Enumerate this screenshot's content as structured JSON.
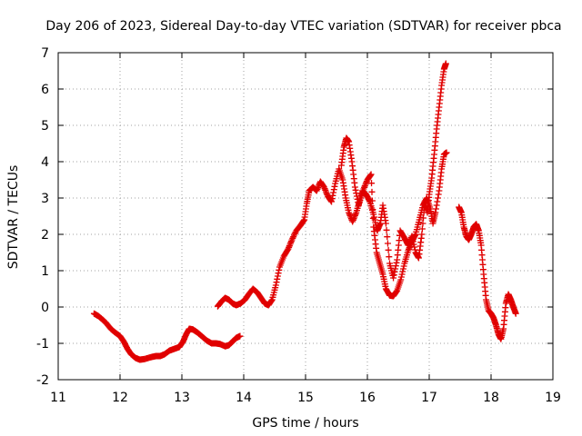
{
  "chart_data": {
    "type": "scatter",
    "title": "Day 206 of 2023, Sidereal Day-to-day VTEC variation (SDTVAR) for receiver pbca",
    "xlabel": "GPS time / hours",
    "ylabel": "SDTVAR / TECUs",
    "xlim": [
      11,
      19
    ],
    "ylim": [
      -2,
      7
    ],
    "xticks": [
      "11",
      "12",
      "13",
      "14",
      "15",
      "16",
      "17",
      "18",
      "19"
    ],
    "yticks": [
      "-2",
      "-1",
      "0",
      "1",
      "2",
      "3",
      "4",
      "5",
      "6",
      "7"
    ],
    "grid": true,
    "marker": "plus",
    "color": "#e00000",
    "series": [
      {
        "name": "segment-1",
        "points": [
          [
            11.58,
            -0.18
          ],
          [
            11.65,
            -0.25
          ],
          [
            11.72,
            -0.35
          ],
          [
            11.78,
            -0.45
          ],
          [
            11.85,
            -0.6
          ],
          [
            11.92,
            -0.7
          ],
          [
            12.0,
            -0.8
          ],
          [
            12.06,
            -0.95
          ],
          [
            12.12,
            -1.15
          ],
          [
            12.18,
            -1.3
          ],
          [
            12.25,
            -1.4
          ],
          [
            12.32,
            -1.45
          ],
          [
            12.4,
            -1.43
          ],
          [
            12.5,
            -1.38
          ],
          [
            12.58,
            -1.35
          ],
          [
            12.65,
            -1.35
          ],
          [
            12.72,
            -1.3
          ],
          [
            12.8,
            -1.2
          ],
          [
            12.88,
            -1.15
          ],
          [
            12.96,
            -1.1
          ],
          [
            13.02,
            -0.95
          ],
          [
            13.07,
            -0.75
          ],
          [
            13.12,
            -0.6
          ],
          [
            13.18,
            -0.62
          ],
          [
            13.25,
            -0.7
          ],
          [
            13.32,
            -0.8
          ],
          [
            13.4,
            -0.92
          ],
          [
            13.48,
            -1.0
          ],
          [
            13.55,
            -1.0
          ],
          [
            13.62,
            -1.02
          ],
          [
            13.7,
            -1.08
          ],
          [
            13.76,
            -1.05
          ],
          [
            13.82,
            -0.95
          ],
          [
            13.88,
            -0.85
          ],
          [
            13.94,
            -0.8
          ]
        ]
      },
      {
        "name": "segment-2",
        "points": [
          [
            13.58,
            0.02
          ],
          [
            13.64,
            0.15
          ],
          [
            13.7,
            0.25
          ],
          [
            13.76,
            0.2
          ],
          [
            13.82,
            0.1
          ],
          [
            13.88,
            0.05
          ],
          [
            13.95,
            0.1
          ],
          [
            14.02,
            0.2
          ],
          [
            14.08,
            0.35
          ],
          [
            14.15,
            0.5
          ],
          [
            14.22,
            0.4
          ],
          [
            14.28,
            0.25
          ],
          [
            14.34,
            0.1
          ],
          [
            14.4,
            0.05
          ],
          [
            14.46,
            0.2
          ],
          [
            14.52,
            0.6
          ],
          [
            14.58,
            1.1
          ],
          [
            14.65,
            1.4
          ],
          [
            14.72,
            1.6
          ],
          [
            14.78,
            1.85
          ],
          [
            14.85,
            2.1
          ],
          [
            14.92,
            2.25
          ],
          [
            14.98,
            2.4
          ],
          [
            15.02,
            2.85
          ],
          [
            15.06,
            3.2
          ],
          [
            15.12,
            3.3
          ],
          [
            15.18,
            3.2
          ],
          [
            15.24,
            3.45
          ],
          [
            15.3,
            3.3
          ],
          [
            15.36,
            3.05
          ],
          [
            15.42,
            2.9
          ],
          [
            15.48,
            3.4
          ],
          [
            15.54,
            3.8
          ],
          [
            15.6,
            3.5
          ],
          [
            15.65,
            3.0
          ],
          [
            15.7,
            2.6
          ],
          [
            15.76,
            2.35
          ],
          [
            15.82,
            2.6
          ],
          [
            15.88,
            2.95
          ],
          [
            15.94,
            3.25
          ],
          [
            16.0,
            3.5
          ],
          [
            16.06,
            3.65
          ],
          [
            16.1,
            2.2
          ],
          [
            16.15,
            1.5
          ],
          [
            16.2,
            1.2
          ],
          [
            16.25,
            0.9
          ],
          [
            16.3,
            0.5
          ],
          [
            16.36,
            0.32
          ],
          [
            16.42,
            0.3
          ],
          [
            16.48,
            0.45
          ],
          [
            16.54,
            0.75
          ],
          [
            16.6,
            1.2
          ],
          [
            16.66,
            1.55
          ],
          [
            16.72,
            1.8
          ],
          [
            16.78,
            2.0
          ],
          [
            16.84,
            2.4
          ],
          [
            16.9,
            2.8
          ],
          [
            16.96,
            3.0
          ],
          [
            17.02,
            2.7
          ],
          [
            17.06,
            2.3
          ],
          [
            17.1,
            2.6
          ],
          [
            17.16,
            3.2
          ],
          [
            17.2,
            3.8
          ],
          [
            17.24,
            4.2
          ],
          [
            17.28,
            4.25
          ]
        ]
      },
      {
        "name": "segment-3",
        "points": [
          [
            15.58,
            3.9
          ],
          [
            15.62,
            4.4
          ],
          [
            15.66,
            4.65
          ],
          [
            15.7,
            4.55
          ],
          [
            15.75,
            4.0
          ],
          [
            15.8,
            3.3
          ],
          [
            15.86,
            2.8
          ],
          [
            15.92,
            3.2
          ],
          [
            15.98,
            3.1
          ],
          [
            16.04,
            2.9
          ],
          [
            16.1,
            2.55
          ],
          [
            16.16,
            2.1
          ],
          [
            16.21,
            2.3
          ],
          [
            16.25,
            2.8
          ],
          [
            16.3,
            2.3
          ],
          [
            16.36,
            1.2
          ],
          [
            16.42,
            0.8
          ],
          [
            16.48,
            1.3
          ],
          [
            16.53,
            2.1
          ],
          [
            16.6,
            1.9
          ],
          [
            16.66,
            1.7
          ],
          [
            16.72,
            1.95
          ],
          [
            16.78,
            1.5
          ],
          [
            16.83,
            1.35
          ],
          [
            16.88,
            2.0
          ],
          [
            16.93,
            2.9
          ],
          [
            16.97,
            2.6
          ],
          [
            17.0,
            3.1
          ],
          [
            17.04,
            3.55
          ],
          [
            17.08,
            4.2
          ],
          [
            17.12,
            4.9
          ],
          [
            17.16,
            5.5
          ],
          [
            17.2,
            6.1
          ],
          [
            17.24,
            6.55
          ],
          [
            17.27,
            6.7
          ]
        ]
      },
      {
        "name": "segment-4",
        "points": [
          [
            17.48,
            2.75
          ],
          [
            17.52,
            2.6
          ],
          [
            17.56,
            2.2
          ],
          [
            17.6,
            1.95
          ],
          [
            17.64,
            1.85
          ],
          [
            17.68,
            2.0
          ],
          [
            17.72,
            2.2
          ],
          [
            17.76,
            2.28
          ],
          [
            17.8,
            2.1
          ],
          [
            17.84,
            1.7
          ],
          [
            17.88,
            0.9
          ],
          [
            17.92,
            0.2
          ],
          [
            17.96,
            -0.1
          ],
          [
            18.0,
            -0.18
          ],
          [
            18.04,
            -0.3
          ],
          [
            18.08,
            -0.5
          ],
          [
            18.12,
            -0.75
          ],
          [
            18.16,
            -0.88
          ],
          [
            18.2,
            -0.6
          ],
          [
            18.24,
            0.1
          ],
          [
            18.28,
            0.35
          ],
          [
            18.32,
            0.2
          ],
          [
            18.36,
            0.0
          ],
          [
            18.4,
            -0.18
          ]
        ]
      }
    ]
  }
}
